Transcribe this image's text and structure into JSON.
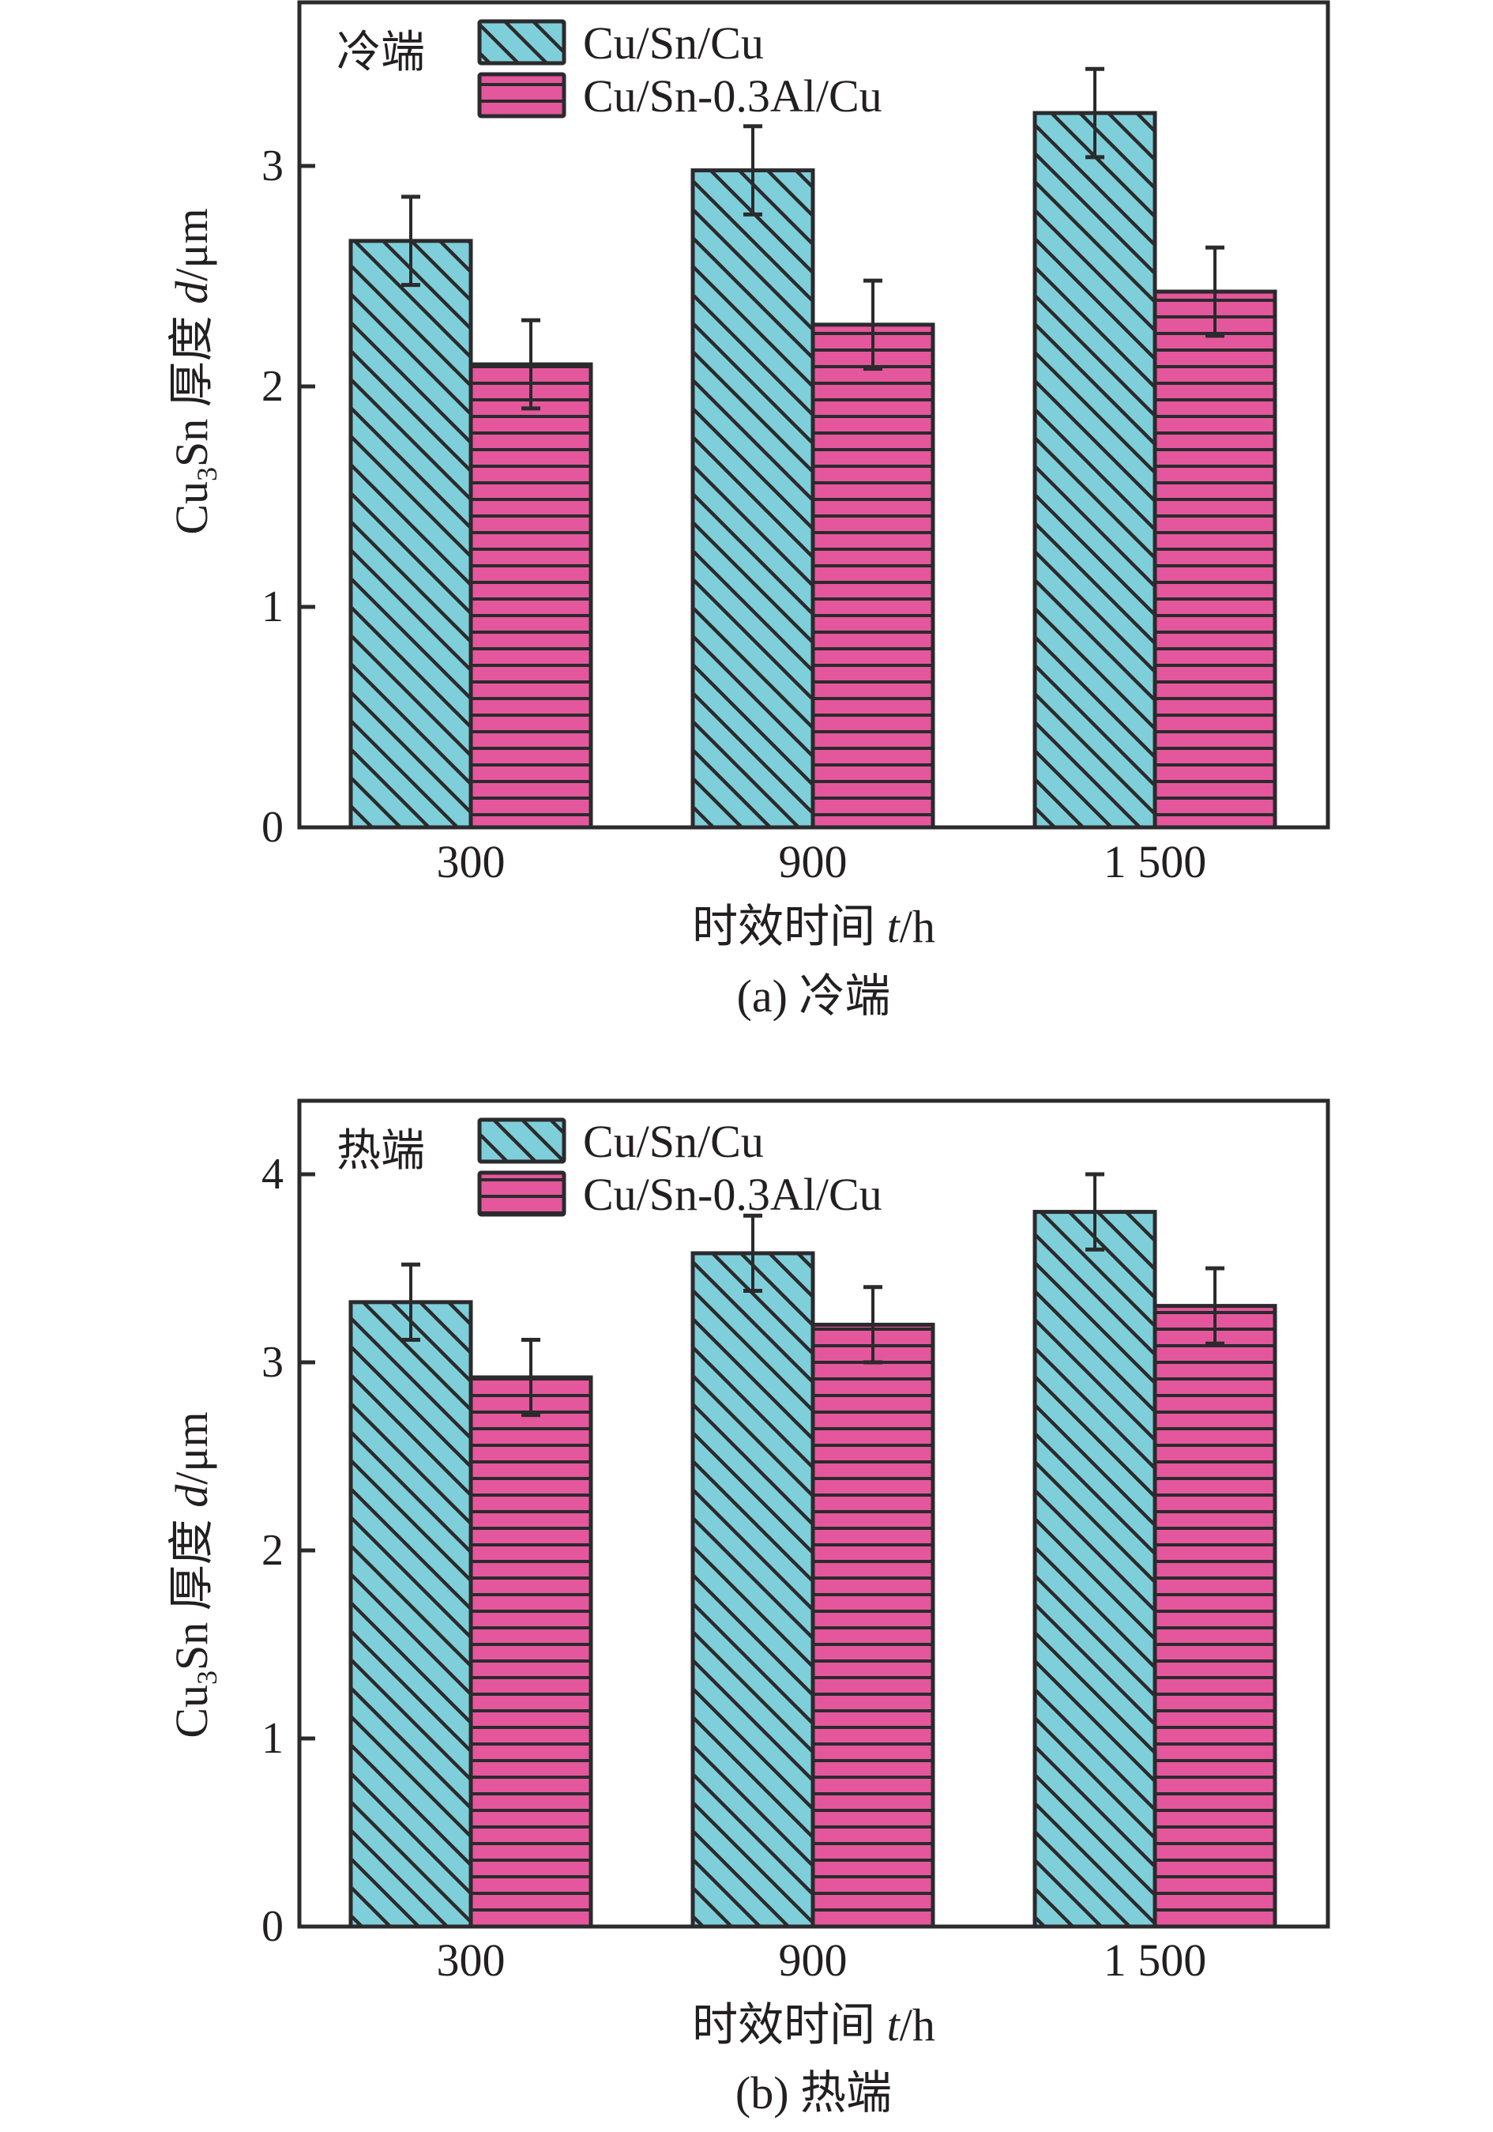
{
  "colors": {
    "series1_fill": "#7ecfda",
    "series2_fill": "#e4579c",
    "stroke": "#2b2a2c"
  },
  "chart_data": [
    {
      "type": "bar",
      "panel_label": "冷端",
      "caption": "(a) 冷端",
      "xlabel": {
        "main": "时效时间 ",
        "var": "t",
        "unit": "/h"
      },
      "ylabel": {
        "main_pre": "Cu",
        "sub": "3",
        "main_post": "Sn 厚度 ",
        "var": "d",
        "unit": "/μm"
      },
      "categories": [
        "300",
        "900",
        "1 500"
      ],
      "ylim": [
        0,
        3.75
      ],
      "yticks": [
        0,
        1,
        2,
        3
      ],
      "ytick_labels": [
        "0",
        "1",
        "2",
        "3"
      ],
      "legend_position": "top-left",
      "series": [
        {
          "name": "Cu/Sn/Cu",
          "pattern": "diagonal",
          "values": [
            2.66,
            2.98,
            3.24
          ],
          "errors": [
            0.2,
            0.2,
            0.2
          ]
        },
        {
          "name": "Cu/Sn-0.3Al/Cu",
          "pattern": "horizontal",
          "values": [
            2.1,
            2.28,
            2.43
          ],
          "errors": [
            0.2,
            0.2,
            0.2
          ]
        }
      ]
    },
    {
      "type": "bar",
      "panel_label": "热端",
      "caption": "(b) 热端",
      "xlabel": {
        "main": "时效时间 ",
        "var": "t",
        "unit": "/h"
      },
      "ylabel": {
        "main_pre": "Cu",
        "sub": "3",
        "main_post": "Sn 厚度 ",
        "var": "d",
        "unit": "/μm"
      },
      "categories": [
        "300",
        "900",
        "1 500"
      ],
      "ylim": [
        0,
        4.4
      ],
      "yticks": [
        0,
        1,
        2,
        3,
        4
      ],
      "ytick_labels": [
        "0",
        "1",
        "2",
        "3",
        "4"
      ],
      "legend_position": "top-left",
      "series": [
        {
          "name": "Cu/Sn/Cu",
          "pattern": "diagonal",
          "values": [
            3.32,
            3.58,
            3.8
          ],
          "errors": [
            0.2,
            0.2,
            0.2
          ]
        },
        {
          "name": "Cu/Sn-0.3Al/Cu",
          "pattern": "horizontal",
          "values": [
            2.92,
            3.2,
            3.3
          ],
          "errors": [
            0.2,
            0.2,
            0.2
          ]
        }
      ]
    }
  ]
}
